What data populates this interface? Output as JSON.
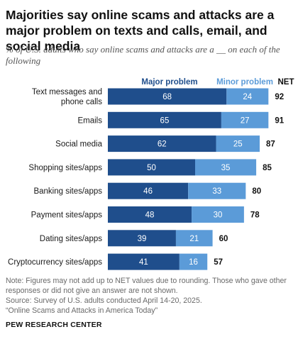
{
  "title": "Majorities say online scams and attacks are a major problem on texts and calls, email, and social media",
  "subtitle": "% of U.S. adults who say online scams and attacks are a __ on each of the following",
  "legend": {
    "major": "Major problem",
    "minor": "Minor problem",
    "net": "NET"
  },
  "colors": {
    "major": "#1f4e8c",
    "minor": "#5b9bd8",
    "major_legend_text": "#1f4e8c",
    "minor_legend_text": "#5b9bd8",
    "bar_text": "#ffffff",
    "net_text": "#111111"
  },
  "chart_data": {
    "type": "bar",
    "orientation": "horizontal",
    "stacked": true,
    "categories": [
      "Text messages and phone calls",
      "Emails",
      "Social media",
      "Shopping sites/apps",
      "Banking sites/apps",
      "Payment sites/apps",
      "Dating sites/apps",
      "Cryptocurrency sites/apps"
    ],
    "category_lines": [
      [
        "Text messages and",
        "phone calls"
      ],
      [
        "Emails"
      ],
      [
        "Social media"
      ],
      [
        "Shopping sites/apps"
      ],
      [
        "Banking sites/apps"
      ],
      [
        "Payment sites/apps"
      ],
      [
        "Dating sites/apps"
      ],
      [
        "Cryptocurrency sites/apps"
      ]
    ],
    "series": [
      {
        "name": "Major problem",
        "values": [
          68,
          65,
          62,
          50,
          46,
          48,
          39,
          41
        ]
      },
      {
        "name": "Minor problem",
        "values": [
          24,
          27,
          25,
          35,
          33,
          30,
          21,
          16
        ]
      }
    ],
    "net": [
      92,
      91,
      87,
      85,
      80,
      78,
      60,
      57
    ],
    "legend_position": "top",
    "grid": false
  },
  "notes": [
    "Note: Figures may not add up to NET values due to rounding. Those who gave other responses or did not give an answer are not shown.",
    "Source: Survey of U.S. adults conducted April 14-20, 2025.",
    "“Online Scams and Attacks in America Today”"
  ],
  "source_org": "PEW RESEARCH CENTER"
}
